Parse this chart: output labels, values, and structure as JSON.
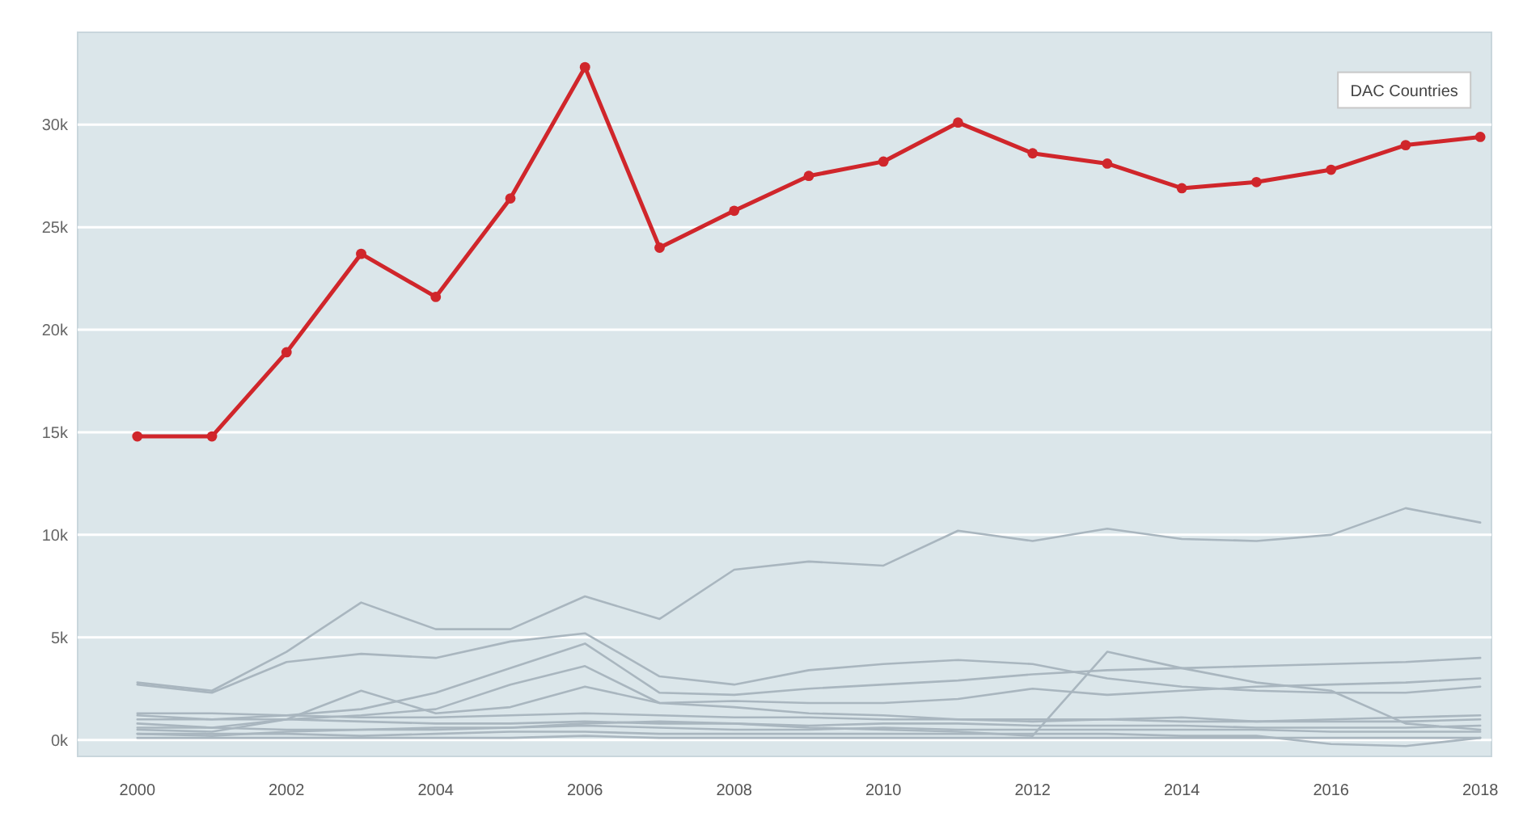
{
  "chart_data": {
    "type": "line",
    "x": [
      2000,
      2001,
      2002,
      2003,
      2004,
      2005,
      2006,
      2007,
      2008,
      2009,
      2010,
      2011,
      2012,
      2013,
      2014,
      2015,
      2016,
      2017,
      2018
    ],
    "xlim": [
      1999.2,
      2018.15
    ],
    "xticks": [
      2000,
      2002,
      2004,
      2006,
      2008,
      2010,
      2012,
      2014,
      2016,
      2018
    ],
    "ylim": [
      -800,
      34500
    ],
    "yticks": [
      {
        "value": 0,
        "label": "0k"
      },
      {
        "value": 5000,
        "label": "5k"
      },
      {
        "value": 10000,
        "label": "10k"
      },
      {
        "value": 15000,
        "label": "15k"
      },
      {
        "value": 20000,
        "label": "20k"
      },
      {
        "value": 25000,
        "label": "25k"
      },
      {
        "value": 30000,
        "label": "30k"
      }
    ],
    "grid": "y",
    "line_style": "solid",
    "series": [
      {
        "color": "#a9b6bf",
        "marker": "none",
        "values": [
          2800,
          2400,
          4300,
          6700,
          5400,
          5400,
          7000,
          5900,
          8300,
          8700,
          8500,
          10200,
          9700,
          10300,
          9800,
          9700,
          10000,
          11300,
          10600
        ]
      },
      {
        "color": "#a9b6bf",
        "marker": "none",
        "values": [
          2700,
          2300,
          3800,
          4200,
          4000,
          4800,
          5200,
          3100,
          2700,
          3400,
          3700,
          3900,
          3700,
          3000,
          2600,
          2400,
          2300,
          2300,
          2600
        ]
      },
      {
        "color": "#a9b6bf",
        "marker": "none",
        "values": [
          1200,
          1000,
          1200,
          1500,
          2300,
          3500,
          4700,
          2300,
          2200,
          2500,
          2700,
          2900,
          3200,
          3400,
          3500,
          3600,
          3700,
          3800,
          4000
        ]
      },
      {
        "color": "#a9b6bf",
        "marker": "none",
        "values": [
          800,
          600,
          1000,
          1200,
          1500,
          2700,
          3600,
          1800,
          1900,
          1800,
          1800,
          2000,
          2500,
          2200,
          2400,
          2600,
          2700,
          2800,
          3000
        ]
      },
      {
        "color": "#a9b6bf",
        "marker": "none",
        "values": [
          300,
          200,
          400,
          500,
          600,
          600,
          800,
          900,
          800,
          600,
          500,
          400,
          200,
          4300,
          3500,
          2800,
          2400,
          800,
          500
        ]
      },
      {
        "color": "#a9b6bf",
        "marker": "none",
        "values": [
          500,
          400,
          1000,
          2400,
          1300,
          1600,
          2600,
          1800,
          1600,
          1300,
          1200,
          1000,
          900,
          1000,
          1100,
          900,
          1000,
          1100,
          1200
        ]
      },
      {
        "color": "#a9b6bf",
        "marker": "none",
        "values": [
          1300,
          1300,
          1200,
          1100,
          1100,
          1200,
          1300,
          1200,
          1100,
          1100,
          1000,
          1000,
          1000,
          1000,
          900,
          900,
          900,
          900,
          1000
        ]
      },
      {
        "color": "#a9b6bf",
        "marker": "none",
        "values": [
          1000,
          1000,
          1000,
          900,
          800,
          800,
          900,
          800,
          800,
          700,
          800,
          800,
          700,
          700,
          700,
          600,
          600,
          600,
          700
        ]
      },
      {
        "color": "#a9b6bf",
        "marker": "none",
        "values": [
          600,
          600,
          500,
          500,
          500,
          600,
          700,
          600,
          500,
          500,
          600,
          500,
          500,
          500,
          500,
          500,
          400,
          400,
          400
        ]
      },
      {
        "color": "#a9b6bf",
        "marker": "none",
        "values": [
          300,
          300,
          300,
          200,
          300,
          400,
          400,
          300,
          300,
          300,
          300,
          300,
          300,
          300,
          200,
          200,
          -200,
          -300,
          100
        ]
      },
      {
        "color": "#a9b6bf",
        "marker": "none",
        "values": [
          100,
          100,
          100,
          100,
          100,
          100,
          200,
          100,
          100,
          100,
          100,
          100,
          100,
          100,
          100,
          100,
          100,
          100,
          100
        ]
      },
      {
        "name": "DAC Countries",
        "color": "#d0262b",
        "marker": "circle",
        "values": [
          14800,
          14800,
          18900,
          23700,
          21600,
          26400,
          32800,
          24000,
          25800,
          27500,
          28200,
          30100,
          28600,
          28100,
          26900,
          27200,
          27800,
          29000,
          29400
        ]
      }
    ]
  }
}
